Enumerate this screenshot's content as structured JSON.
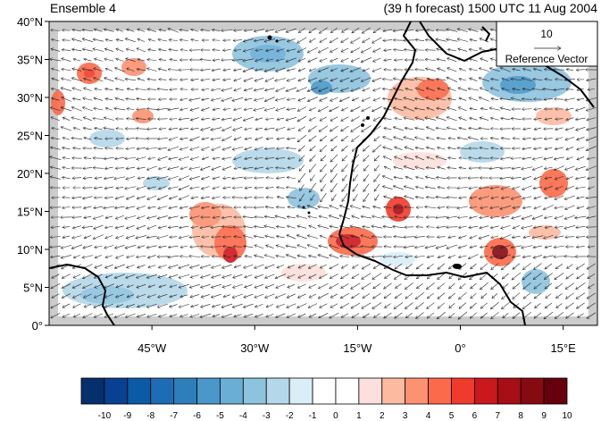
{
  "header": {
    "left_title": "Ensemble 4",
    "right_title": "(39 h forecast) 1500 UTC 11 Aug 2004"
  },
  "map": {
    "lat_labels": [
      "40°N",
      "35°N",
      "30°N",
      "25°N",
      "20°N",
      "15°N",
      "10°N",
      "5°N",
      "0°"
    ],
    "lat_values": [
      40,
      35,
      30,
      25,
      20,
      15,
      10,
      5,
      0
    ],
    "lon_labels": [
      "45°W",
      "30°W",
      "15°W",
      "0°",
      "15°E"
    ],
    "lon_values": [
      -45,
      -30,
      -15,
      0,
      15
    ],
    "lon_range": [
      -60,
      20
    ],
    "lat_range": [
      0,
      40
    ],
    "land_color": "#cccccc",
    "reference_vector": {
      "value_label": "10",
      "caption": "Reference Vector"
    }
  },
  "colorbar": {
    "labels": [
      "-10",
      "-9",
      "-8",
      "-7",
      "-6",
      "-5",
      "-4",
      "-3",
      "-2",
      "-1",
      "0",
      "1",
      "2",
      "3",
      "4",
      "5",
      "6",
      "7",
      "8",
      "9",
      "10"
    ],
    "colors": [
      "#05306b",
      "#08418f",
      "#0c5aa6",
      "#1c6db4",
      "#2e7ebc",
      "#4a97c9",
      "#6aaed6",
      "#8ec3de",
      "#b4d8e9",
      "#daeef8",
      "#ffffff",
      "#ffffff",
      "#fde0dd",
      "#fcbba1",
      "#fc9272",
      "#fb6a4a",
      "#ef3b2c",
      "#cb181d",
      "#a50f15",
      "#860a12",
      "#67000d"
    ]
  }
}
